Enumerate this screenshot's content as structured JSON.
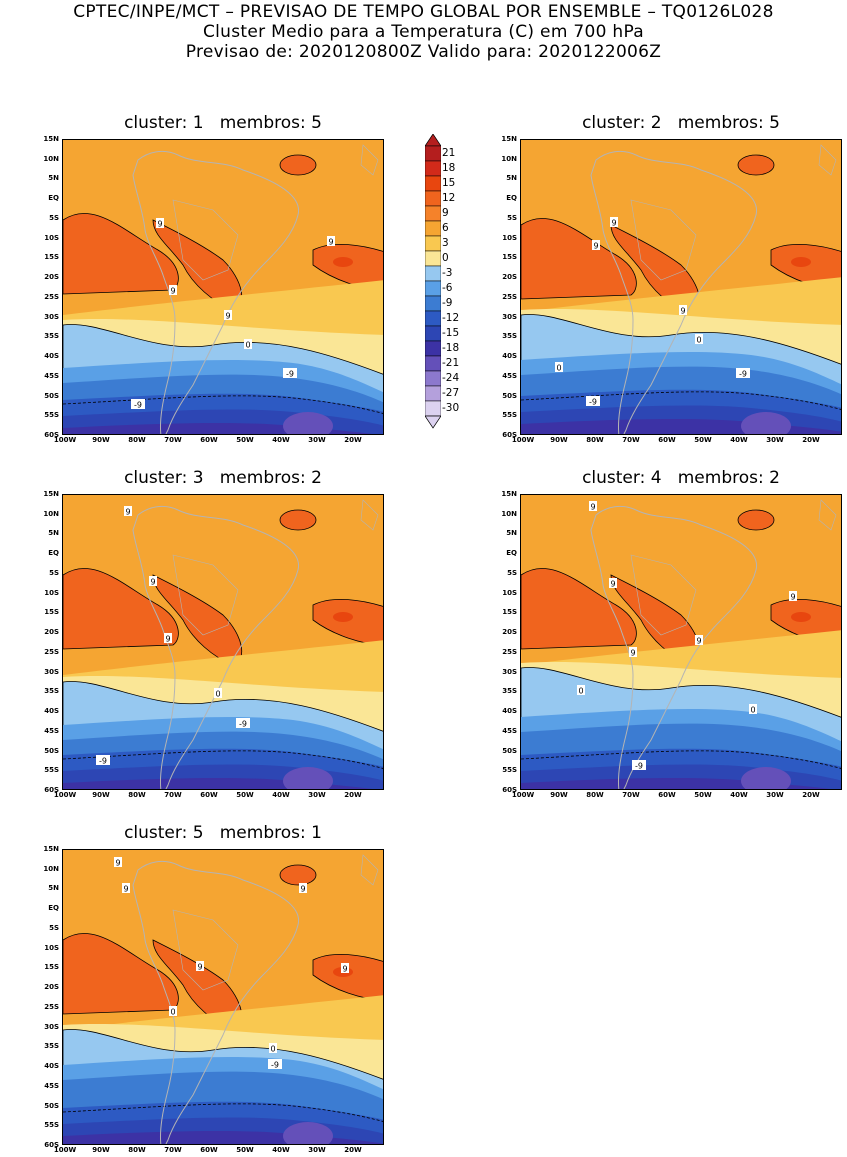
{
  "header": {
    "line1": "CPTEC/INPE/MCT – PREVISAO DE TEMPO GLOBAL POR ENSEMBLE – TQ0126L028",
    "line2": "Cluster Medio para a Temperatura (C) em 700 hPa",
    "line3": "Previsao de: 2020120800Z    Valido para: 2020122006Z"
  },
  "axis": {
    "lat_labels": [
      "15N",
      "10N",
      "5N",
      "EQ",
      "5S",
      "10S",
      "15S",
      "20S",
      "25S",
      "30S",
      "35S",
      "40S",
      "45S",
      "50S",
      "55S",
      "60S"
    ],
    "lon_labels": [
      "100W",
      "90W",
      "80W",
      "70W",
      "60W",
      "50W",
      "40W",
      "30W",
      "20W"
    ]
  },
  "colorbar": {
    "labels": [
      "21",
      "18",
      "15",
      "12",
      "9",
      "6",
      "3",
      "0",
      "-3",
      "-6",
      "-9",
      "-12",
      "-15",
      "-18",
      "-21",
      "-24",
      "-27",
      "-30"
    ],
    "colors": [
      "#b41e1e",
      "#d22a1a",
      "#e8460f",
      "#f0641e",
      "#f5822a",
      "#f5a532",
      "#f9c850",
      "#fae696",
      "#96c8f0",
      "#5aa0e6",
      "#3c7cd2",
      "#2d5ac3",
      "#2d46b4",
      "#3c32a5",
      "#6450b9",
      "#8c78cd",
      "#b4a0dc",
      "#dcd2f0"
    ]
  },
  "panels": [
    {
      "title": "cluster: 1   membros: 5",
      "contour_labels": [
        "9",
        "9",
        "9",
        "9",
        "0",
        "-9",
        "-9"
      ]
    },
    {
      "title": "cluster: 2   membros: 5",
      "contour_labels": [
        "9",
        "9",
        "9",
        "0",
        "0",
        "-9",
        "-9"
      ]
    },
    {
      "title": "cluster: 3   membros: 2",
      "contour_labels": [
        "9",
        "9",
        "9",
        "0",
        "-9",
        "-9"
      ]
    },
    {
      "title": "cluster: 4   membros: 2",
      "contour_labels": [
        "9",
        "9",
        "9",
        "9",
        "9",
        "0",
        "0",
        "-9"
      ]
    },
    {
      "title": "cluster: 5   membros: 1",
      "contour_labels": [
        "9",
        "9",
        "9",
        "9",
        "9",
        "0",
        "0",
        "-9"
      ]
    }
  ]
}
